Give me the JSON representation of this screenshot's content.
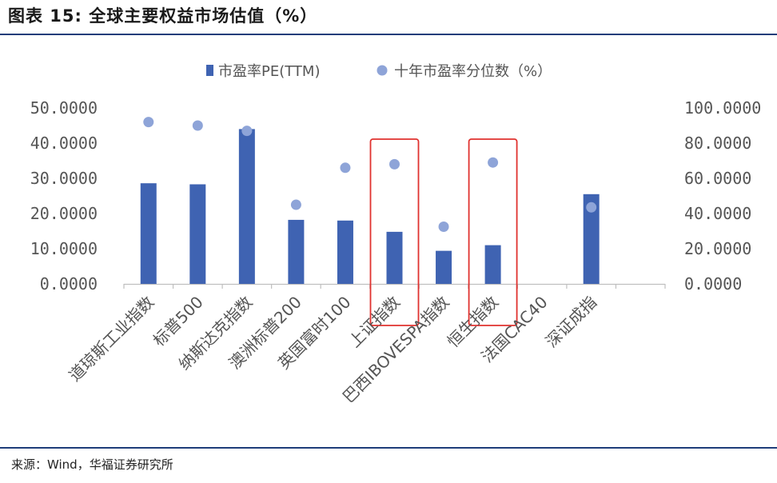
{
  "header": {
    "title": "图表 15: 全球主要权益市场估值（%）"
  },
  "footer": {
    "source": "来源：Wind，华福证券研究所"
  },
  "colors": {
    "bar": "#3f63b2",
    "dot": "#8ea4d8",
    "highlight": "#e0322f",
    "rule": "#1f3d7a"
  },
  "chart_data": {
    "type": "bar",
    "categories": [
      "道琼斯工业指数",
      "标普500",
      "纳斯达克指数",
      "澳洲标普200",
      "英国富时100",
      "上证指数",
      "巴西IBOVESPA指数",
      "恒生指数",
      "法国CAC40",
      "深证成指"
    ],
    "series": [
      {
        "name": "市盈率PE(TTM)",
        "type": "bar",
        "axis": "left",
        "values": [
          28.6,
          28.3,
          44.0,
          18.2,
          18.0,
          14.8,
          9.4,
          11.0,
          null,
          25.5
        ]
      },
      {
        "name": "十年市盈率分位数（%）",
        "type": "scatter",
        "axis": "right",
        "values": [
          92.0,
          90.0,
          87.0,
          45.0,
          66.0,
          68.0,
          32.5,
          69.0,
          null,
          43.5
        ]
      }
    ],
    "left_axis": {
      "min": 0,
      "max": 50,
      "ticks": [
        "0.0000",
        "10.0000",
        "20.0000",
        "30.0000",
        "40.0000",
        "50.0000"
      ]
    },
    "right_axis": {
      "min": 0,
      "max": 100,
      "ticks": [
        "0.0000",
        "20.0000",
        "40.0000",
        "60.0000",
        "80.0000",
        "100.0000"
      ]
    },
    "highlighted_categories": [
      "上证指数",
      "恒生指数"
    ],
    "legend_position": "top-center",
    "grid": false
  }
}
